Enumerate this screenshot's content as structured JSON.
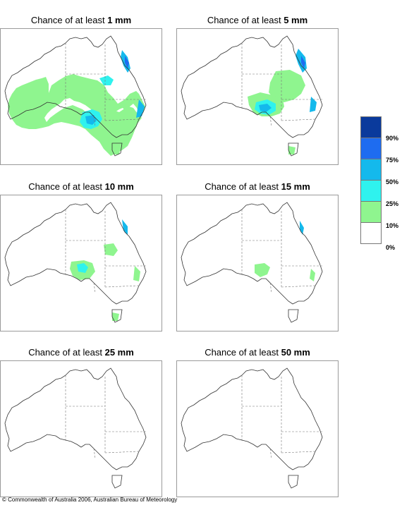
{
  "panels": [
    {
      "prefix": "Chance of at least ",
      "amount": "1 mm"
    },
    {
      "prefix": "Chance of at least ",
      "amount": "5 mm"
    },
    {
      "prefix": "Chance of at least ",
      "amount": "10 mm"
    },
    {
      "prefix": "Chance of at least ",
      "amount": "15 mm"
    },
    {
      "prefix": "Chance of at least ",
      "amount": "25 mm"
    },
    {
      "prefix": "Chance of at least ",
      "amount": "50 mm"
    }
  ],
  "legend": {
    "bands": [
      {
        "range": "90-100%",
        "color": "#0a3a9c"
      },
      {
        "range": "75-90%",
        "color": "#1e6cf0"
      },
      {
        "range": "50-75%",
        "color": "#14b9ec"
      },
      {
        "range": "25-50%",
        "color": "#2ff2ee"
      },
      {
        "range": "10-25%",
        "color": "#8ff58f"
      },
      {
        "range": "0-10%",
        "color": "#ffffff"
      }
    ],
    "labels": [
      "90%",
      "75%",
      "50%",
      "25%",
      "10%",
      "0%"
    ]
  },
  "colors": {
    "coast": "#333333",
    "border": "#777777",
    "frame": "#9a9a9a"
  },
  "copyright": "© Commonwealth of Australia 2006, Australian Bureau of Meteorology"
}
